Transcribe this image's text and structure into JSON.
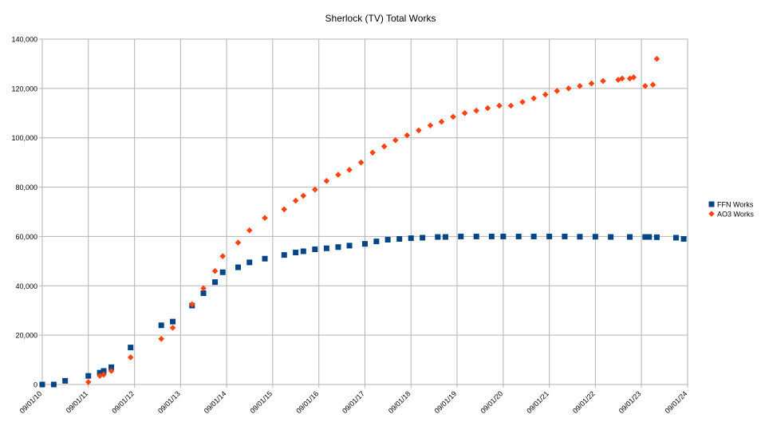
{
  "chart_data": {
    "type": "scatter",
    "title": "Sherlock (TV) Total Works",
    "xlabel": "",
    "ylabel": "",
    "x_axis": {
      "type": "date",
      "min": "2010-09-01",
      "max": "2024-09-01",
      "tick_dates": [
        "2010-09-01",
        "2011-09-01",
        "2012-09-01",
        "2013-09-01",
        "2014-09-01",
        "2015-09-01",
        "2016-09-01",
        "2017-09-01",
        "2018-09-01",
        "2019-09-01",
        "2020-09-01",
        "2021-09-01",
        "2022-09-01",
        "2023-09-01",
        "2024-09-01"
      ],
      "tick_labels": [
        "09/01/10",
        "09/01/11",
        "09/01/12",
        "09/01/13",
        "09/01/14",
        "09/01/15",
        "09/01/16",
        "09/01/17",
        "09/01/18",
        "09/01/19",
        "09/01/20",
        "09/01/21",
        "09/01/22",
        "09/01/23",
        "09/01/24"
      ]
    },
    "y_axis": {
      "min": 0,
      "max": 140000,
      "tick_values": [
        0,
        20000,
        40000,
        60000,
        80000,
        100000,
        120000,
        140000
      ],
      "tick_labels": [
        "0",
        "20,000",
        "40,000",
        "60,000",
        "80,000",
        "100,000",
        "120,000",
        "140,000"
      ]
    },
    "grid": true,
    "legend_position": "right",
    "series": [
      {
        "name": "FFN Works",
        "marker": "square",
        "color": "#004586",
        "points": [
          {
            "x": "2010-09-01",
            "y": 0
          },
          {
            "x": "2010-12-01",
            "y": 0
          },
          {
            "x": "2011-03-01",
            "y": 1500
          },
          {
            "x": "2011-09-01",
            "y": 3500
          },
          {
            "x": "2011-12-01",
            "y": 4800
          },
          {
            "x": "2012-01-01",
            "y": 5500
          },
          {
            "x": "2012-03-01",
            "y": 7000
          },
          {
            "x": "2012-08-01",
            "y": 15000
          },
          {
            "x": "2013-04-01",
            "y": 24000
          },
          {
            "x": "2013-07-01",
            "y": 25500
          },
          {
            "x": "2013-12-01",
            "y": 32000
          },
          {
            "x": "2014-03-01",
            "y": 37000
          },
          {
            "x": "2014-06-01",
            "y": 41500
          },
          {
            "x": "2014-08-01",
            "y": 45500
          },
          {
            "x": "2014-12-01",
            "y": 47500
          },
          {
            "x": "2015-03-01",
            "y": 49500
          },
          {
            "x": "2015-07-01",
            "y": 51000
          },
          {
            "x": "2015-12-01",
            "y": 52500
          },
          {
            "x": "2016-03-01",
            "y": 53500
          },
          {
            "x": "2016-05-01",
            "y": 54000
          },
          {
            "x": "2016-08-01",
            "y": 54800
          },
          {
            "x": "2016-11-01",
            "y": 55200
          },
          {
            "x": "2017-02-01",
            "y": 55700
          },
          {
            "x": "2017-05-01",
            "y": 56300
          },
          {
            "x": "2017-09-01",
            "y": 57000
          },
          {
            "x": "2017-12-01",
            "y": 58000
          },
          {
            "x": "2018-03-01",
            "y": 58700
          },
          {
            "x": "2018-06-01",
            "y": 59000
          },
          {
            "x": "2018-09-01",
            "y": 59300
          },
          {
            "x": "2018-12-01",
            "y": 59500
          },
          {
            "x": "2019-04-01",
            "y": 59800
          },
          {
            "x": "2019-06-01",
            "y": 59800
          },
          {
            "x": "2019-10-01",
            "y": 60000
          },
          {
            "x": "2020-02-01",
            "y": 60000
          },
          {
            "x": "2020-06-01",
            "y": 60000
          },
          {
            "x": "2020-09-01",
            "y": 60000
          },
          {
            "x": "2021-01-01",
            "y": 60000
          },
          {
            "x": "2021-05-01",
            "y": 60000
          },
          {
            "x": "2021-09-01",
            "y": 60000
          },
          {
            "x": "2022-01-01",
            "y": 60000
          },
          {
            "x": "2022-05-01",
            "y": 59900
          },
          {
            "x": "2022-09-01",
            "y": 59900
          },
          {
            "x": "2023-01-01",
            "y": 59800
          },
          {
            "x": "2023-06-01",
            "y": 59800
          },
          {
            "x": "2023-10-01",
            "y": 59800
          },
          {
            "x": "2023-11-01",
            "y": 59800
          },
          {
            "x": "2024-01-01",
            "y": 59700
          },
          {
            "x": "2024-06-01",
            "y": 59500
          },
          {
            "x": "2024-08-01",
            "y": 59000
          }
        ]
      },
      {
        "name": "AO3 Works",
        "marker": "diamond",
        "color": "#ff420e",
        "points": [
          {
            "x": "2011-09-01",
            "y": 1000
          },
          {
            "x": "2011-12-01",
            "y": 3500
          },
          {
            "x": "2012-01-01",
            "y": 4000
          },
          {
            "x": "2012-03-01",
            "y": 5500
          },
          {
            "x": "2012-08-01",
            "y": 11000
          },
          {
            "x": "2013-04-01",
            "y": 18500
          },
          {
            "x": "2013-07-01",
            "y": 23000
          },
          {
            "x": "2013-12-01",
            "y": 32500
          },
          {
            "x": "2014-03-01",
            "y": 39000
          },
          {
            "x": "2014-06-01",
            "y": 46000
          },
          {
            "x": "2014-08-01",
            "y": 52000
          },
          {
            "x": "2014-12-01",
            "y": 57500
          },
          {
            "x": "2015-03-01",
            "y": 62500
          },
          {
            "x": "2015-07-01",
            "y": 67500
          },
          {
            "x": "2015-12-01",
            "y": 71000
          },
          {
            "x": "2016-03-01",
            "y": 74500
          },
          {
            "x": "2016-05-01",
            "y": 76500
          },
          {
            "x": "2016-08-01",
            "y": 79000
          },
          {
            "x": "2016-11-01",
            "y": 82500
          },
          {
            "x": "2017-02-01",
            "y": 85000
          },
          {
            "x": "2017-05-01",
            "y": 87000
          },
          {
            "x": "2017-08-01",
            "y": 90000
          },
          {
            "x": "2017-11-01",
            "y": 94000
          },
          {
            "x": "2018-02-01",
            "y": 96500
          },
          {
            "x": "2018-05-01",
            "y": 99000
          },
          {
            "x": "2018-08-01",
            "y": 101000
          },
          {
            "x": "2018-11-01",
            "y": 103000
          },
          {
            "x": "2019-02-01",
            "y": 105000
          },
          {
            "x": "2019-05-01",
            "y": 106500
          },
          {
            "x": "2019-08-01",
            "y": 108500
          },
          {
            "x": "2019-11-01",
            "y": 110000
          },
          {
            "x": "2020-02-01",
            "y": 111000
          },
          {
            "x": "2020-05-01",
            "y": 112000
          },
          {
            "x": "2020-08-01",
            "y": 113000
          },
          {
            "x": "2020-11-01",
            "y": 113000
          },
          {
            "x": "2021-02-01",
            "y": 114500
          },
          {
            "x": "2021-05-01",
            "y": 116000
          },
          {
            "x": "2021-08-01",
            "y": 117500
          },
          {
            "x": "2021-11-01",
            "y": 119000
          },
          {
            "x": "2022-02-01",
            "y": 120000
          },
          {
            "x": "2022-05-01",
            "y": 121000
          },
          {
            "x": "2022-08-01",
            "y": 122000
          },
          {
            "x": "2022-11-01",
            "y": 123000
          },
          {
            "x": "2023-03-01",
            "y": 123500
          },
          {
            "x": "2023-04-01",
            "y": 124000
          },
          {
            "x": "2023-06-01",
            "y": 124000
          },
          {
            "x": "2023-07-01",
            "y": 124500
          },
          {
            "x": "2023-10-01",
            "y": 121000
          },
          {
            "x": "2023-12-01",
            "y": 121500
          },
          {
            "x": "2024-01-01",
            "y": 132000
          }
        ]
      }
    ]
  }
}
